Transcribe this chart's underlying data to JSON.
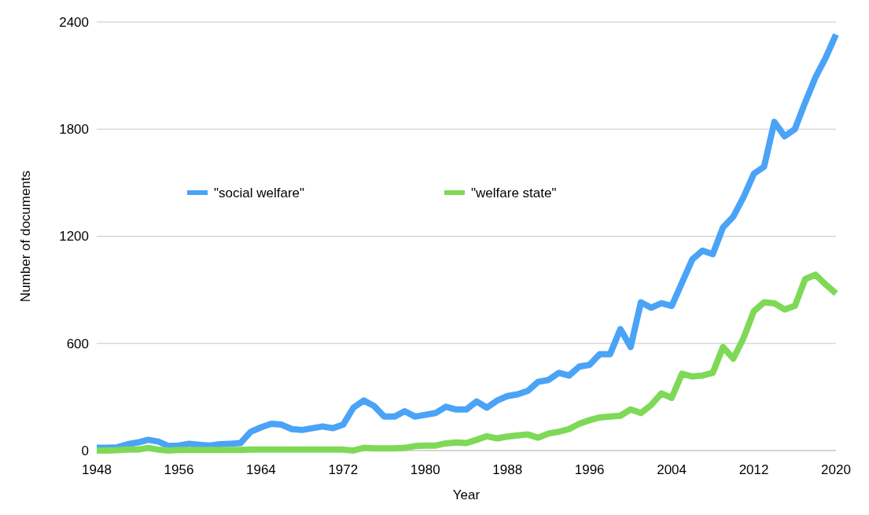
{
  "chart_data": {
    "type": "line",
    "xlabel": "Year",
    "ylabel": "Number of documents",
    "x": [
      1948,
      1949,
      1950,
      1951,
      1952,
      1953,
      1954,
      1955,
      1956,
      1957,
      1958,
      1959,
      1960,
      1961,
      1962,
      1963,
      1964,
      1965,
      1966,
      1967,
      1968,
      1969,
      1970,
      1971,
      1972,
      1973,
      1974,
      1975,
      1976,
      1977,
      1978,
      1979,
      1980,
      1981,
      1982,
      1983,
      1984,
      1985,
      1986,
      1987,
      1988,
      1989,
      1990,
      1991,
      1992,
      1993,
      1994,
      1995,
      1996,
      1997,
      1998,
      1999,
      2000,
      2001,
      2002,
      2003,
      2004,
      2005,
      2006,
      2007,
      2008,
      2009,
      2010,
      2011,
      2012,
      2013,
      2014,
      2015,
      2016,
      2017,
      2018,
      2019,
      2020
    ],
    "series": [
      {
        "name": "\"social welfare\"",
        "color": "#4aa3f7",
        "values": [
          15,
          15,
          18,
          35,
          45,
          60,
          50,
          25,
          28,
          38,
          32,
          28,
          35,
          38,
          42,
          105,
          130,
          150,
          145,
          120,
          115,
          125,
          135,
          125,
          145,
          240,
          280,
          250,
          190,
          190,
          220,
          190,
          200,
          210,
          245,
          230,
          230,
          275,
          240,
          280,
          305,
          315,
          335,
          385,
          395,
          435,
          420,
          470,
          480,
          540,
          540,
          680,
          580,
          830,
          800,
          825,
          810,
          940,
          1070,
          1120,
          1100,
          1250,
          1310,
          1420,
          1550,
          1590,
          1840,
          1760,
          1800,
          1950,
          2090,
          2200,
          2330
        ]
      },
      {
        "name": "\"welfare state\"",
        "color": "#7ed957",
        "values": [
          0,
          0,
          2,
          5,
          5,
          15,
          5,
          0,
          3,
          3,
          3,
          3,
          3,
          3,
          3,
          5,
          5,
          5,
          5,
          5,
          5,
          5,
          5,
          5,
          5,
          0,
          15,
          12,
          12,
          12,
          15,
          25,
          28,
          28,
          40,
          45,
          42,
          60,
          80,
          68,
          78,
          85,
          90,
          72,
          95,
          105,
          120,
          150,
          170,
          185,
          190,
          195,
          230,
          210,
          255,
          320,
          295,
          430,
          415,
          420,
          435,
          580,
          515,
          630,
          780,
          830,
          825,
          790,
          810,
          960,
          985,
          930,
          880
        ]
      }
    ],
    "xlim": [
      1948,
      2020
    ],
    "xticks": [
      1948,
      1956,
      1964,
      1972,
      1980,
      1988,
      1996,
      2004,
      2012,
      2020
    ],
    "ylim": [
      0,
      2400
    ],
    "yticks": [
      0,
      600,
      1200,
      1800,
      2400
    ],
    "grid": "y",
    "legend": "left",
    "marker": "none",
    "line_style": "solid"
  }
}
